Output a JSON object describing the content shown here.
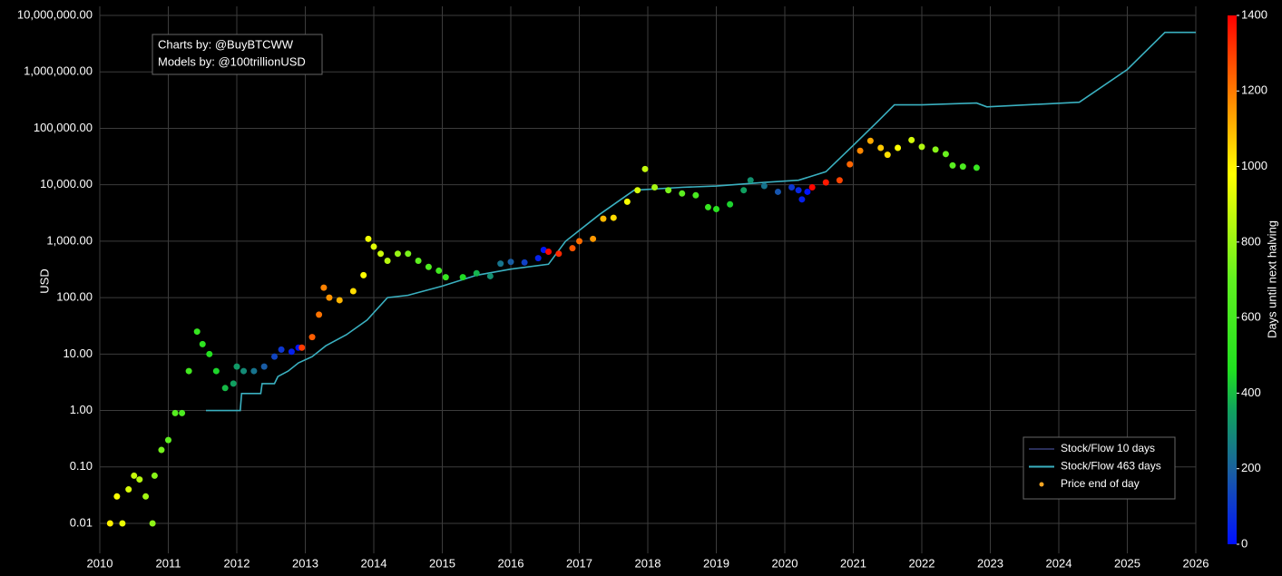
{
  "chart_data": {
    "type": "scatter",
    "log_y": true,
    "grid": true,
    "legend": "lower right",
    "ylabel": "USD",
    "colorbar_label": "Days until next halving",
    "annotation": [
      "Charts by: @BuyBTCWW",
      "Models by: @100trillionUSD"
    ],
    "xlim": [
      2010,
      2026
    ],
    "xticks": [
      2010,
      2011,
      2012,
      2013,
      2014,
      2015,
      2016,
      2017,
      2018,
      2019,
      2020,
      2021,
      2022,
      2023,
      2024,
      2025,
      2026
    ],
    "ylim": [
      0.006,
      10000000
    ],
    "yticks": [
      {
        "value": 0.01,
        "label": "0.01"
      },
      {
        "value": 0.1,
        "label": "0.10"
      },
      {
        "value": 1,
        "label": "1.00"
      },
      {
        "value": 10,
        "label": "10.00"
      },
      {
        "value": 100,
        "label": "100.00"
      },
      {
        "value": 1000,
        "label": "1,000.00"
      },
      {
        "value": 10000,
        "label": "10,000.00"
      },
      {
        "value": 100000,
        "label": "100,000.00"
      },
      {
        "value": 1000000,
        "label": "1,000,000.00"
      },
      {
        "value": 10000000,
        "label": "10,000,000.00"
      }
    ],
    "clim": [
      0,
      1400
    ],
    "cticks": [
      0,
      200,
      400,
      600,
      800,
      1000,
      1200,
      1400
    ],
    "colorscale": [
      [
        0,
        "#0010ff"
      ],
      [
        0.14,
        "#1a60a0"
      ],
      [
        0.25,
        "#10a060"
      ],
      [
        0.33,
        "#20e020"
      ],
      [
        0.5,
        "#60f020"
      ],
      [
        0.7,
        "#ffff00"
      ],
      [
        0.85,
        "#ff8000"
      ],
      [
        1,
        "#ff0000"
      ]
    ],
    "series": [
      {
        "name": "Stock/Flow 10 days",
        "color": "#2a2f5a"
      },
      {
        "name": "Stock/Flow 463 days",
        "color": "#3ab0c0",
        "x": [
          2011.55,
          2012.05,
          2012.07,
          2012.35,
          2012.37,
          2012.55,
          2012.6,
          2012.75,
          2012.9,
          2013.1,
          2013.3,
          2013.6,
          2013.9,
          2014.2,
          2014.5,
          2015.0,
          2015.5,
          2016.0,
          2016.55,
          2016.8,
          2017.3,
          2017.8,
          2018.5,
          2019.0,
          2019.7,
          2020.2,
          2020.6,
          2021.0,
          2021.35,
          2021.6,
          2022.0,
          2022.8,
          2022.95,
          2024.3,
          2025.0,
          2025.55,
          2026.0
        ],
        "values": [
          1,
          1,
          2,
          2,
          3,
          3,
          4,
          5,
          7,
          9,
          14,
          22,
          40,
          100,
          110,
          160,
          250,
          320,
          390,
          1000,
          3000,
          8000,
          9000,
          9500,
          11000,
          12000,
          17000,
          50000,
          130000,
          260000,
          260000,
          280000,
          240000,
          290000,
          1100000,
          5000000,
          5000000
        ]
      },
      {
        "name": "Price end of day",
        "color": "#f5a623",
        "x": [
          2010.15,
          2010.25,
          2010.33,
          2010.42,
          2010.5,
          2010.58,
          2010.67,
          2010.77,
          2010.8,
          2010.9,
          2011.0,
          2011.1,
          2011.2,
          2011.3,
          2011.42,
          2011.5,
          2011.6,
          2011.7,
          2011.83,
          2011.95,
          2012.0,
          2012.1,
          2012.25,
          2012.4,
          2012.55,
          2012.65,
          2012.8,
          2012.9,
          2012.95,
          2013.1,
          2013.2,
          2013.27,
          2013.35,
          2013.5,
          2013.7,
          2013.85,
          2013.92,
          2014.0,
          2014.1,
          2014.2,
          2014.35,
          2014.5,
          2014.65,
          2014.8,
          2014.95,
          2015.05,
          2015.3,
          2015.5,
          2015.7,
          2015.85,
          2016.0,
          2016.2,
          2016.4,
          2016.48,
          2016.55,
          2016.7,
          2016.9,
          2017.0,
          2017.2,
          2017.35,
          2017.5,
          2017.7,
          2017.85,
          2017.96,
          2018.1,
          2018.3,
          2018.5,
          2018.7,
          2018.88,
          2019.0,
          2019.2,
          2019.4,
          2019.5,
          2019.7,
          2019.9,
          2020.1,
          2020.2,
          2020.25,
          2020.33,
          2020.4,
          2020.6,
          2020.8,
          2020.95,
          2021.1,
          2021.25,
          2021.4,
          2021.5,
          2021.65,
          2021.85,
          2022.0,
          2022.2,
          2022.35,
          2022.45,
          2022.6,
          2022.8
        ],
        "values": [
          0.01,
          0.03,
          0.01,
          0.04,
          0.07,
          0.06,
          0.03,
          0.01,
          0.07,
          0.2,
          0.3,
          0.9,
          0.9,
          5,
          25,
          15,
          10,
          5,
          2.5,
          3,
          6,
          5,
          5,
          6,
          9,
          12,
          11,
          13,
          13,
          20,
          50,
          150,
          100,
          90,
          130,
          250,
          1100,
          800,
          600,
          450,
          600,
          600,
          450,
          350,
          300,
          230,
          230,
          270,
          240,
          400,
          430,
          420,
          500,
          700,
          650,
          600,
          750,
          1000,
          1100,
          2500,
          2600,
          5000,
          8000,
          19000,
          9000,
          8000,
          7000,
          6500,
          4000,
          3700,
          4500,
          8000,
          12000,
          9500,
          7500,
          9000,
          8000,
          5500,
          7500,
          9000,
          11000,
          12000,
          23000,
          40000,
          60000,
          45000,
          34000,
          45000,
          62000,
          47000,
          42000,
          35000,
          22000,
          21000,
          20000
        ],
        "days": [
          1007,
          971,
          942,
          909,
          880,
          850,
          818,
          781,
          770,
          734,
          697,
          661,
          624,
          588,
          544,
          515,
          478,
          442,
          394,
          350,
          332,
          296,
          241,
          186,
          131,
          95,
          40,
          4,
          1303,
          1248,
          1212,
          1186,
          1157,
          1102,
          1037,
          982,
          956,
          927,
          891,
          854,
          799,
          745,
          690,
          635,
          580,
          544,
          456,
          383,
          310,
          245,
          190,
          117,
          44,
          15,
          1388,
          1334,
          1259,
          1223,
          1150,
          1095,
          1040,
          967,
          912,
          872,
          821,
          748,
          686,
          613,
          547,
          500,
          438,
          350,
          314,
          241,
          168,
          95,
          58,
          40,
          11,
          1390,
          1361,
          1288,
          1234,
          1179,
          1124,
          1069,
          1032,
          978,
          905,
          843,
          770,
          715,
          679,
          624,
          551
        ]
      }
    ]
  }
}
